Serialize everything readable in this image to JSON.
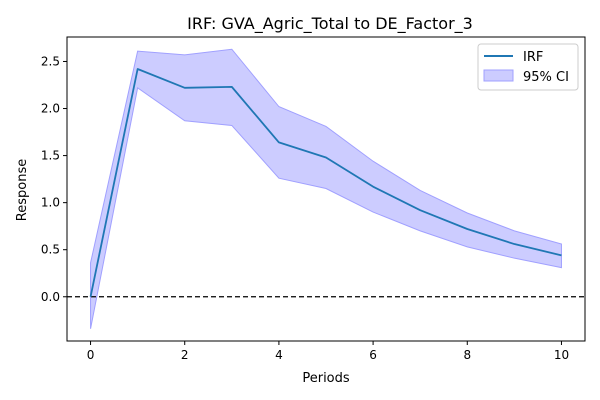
{
  "chart_data": {
    "type": "line",
    "title": "IRF: GVA_Agric_Total to DE_Factor_3",
    "xlabel": "Periods",
    "ylabel": "Response",
    "x": [
      0,
      1,
      2,
      3,
      4,
      5,
      6,
      7,
      8,
      9,
      10
    ],
    "series": [
      {
        "name": "IRF",
        "values": [
          0.0,
          2.42,
          2.22,
          2.23,
          1.64,
          1.48,
          1.17,
          0.92,
          0.72,
          0.56,
          0.44
        ],
        "color": "#1f77b4"
      }
    ],
    "confidence_band": {
      "name": "95% CI",
      "lower": [
        -0.34,
        2.22,
        1.87,
        1.82,
        1.26,
        1.15,
        0.9,
        0.7,
        0.53,
        0.41,
        0.31
      ],
      "upper": [
        0.36,
        2.61,
        2.57,
        2.63,
        2.02,
        1.81,
        1.44,
        1.13,
        0.89,
        0.7,
        0.56
      ],
      "fill_color": "#ccccff",
      "edge_color": "#a0a0ff"
    },
    "zero_line": {
      "y": 0.0,
      "style": "dashed",
      "color": "#000000"
    },
    "xlim": [
      -0.5,
      10.5
    ],
    "ylim": [
      -0.47,
      2.76
    ],
    "xticks": [
      0,
      2,
      4,
      6,
      8,
      10
    ],
    "xtick_labels": [
      "0",
      "2",
      "4",
      "6",
      "8",
      "10"
    ],
    "yticks": [
      0.0,
      0.5,
      1.0,
      1.5,
      2.0,
      2.5
    ],
    "ytick_labels": [
      "0.0",
      "0.5",
      "1.0",
      "1.5",
      "2.0",
      "2.5"
    ],
    "grid": false,
    "legend_position": "top-right",
    "legend": [
      {
        "label": "IRF",
        "kind": "line"
      },
      {
        "label": "95% CI",
        "kind": "patch"
      }
    ]
  }
}
